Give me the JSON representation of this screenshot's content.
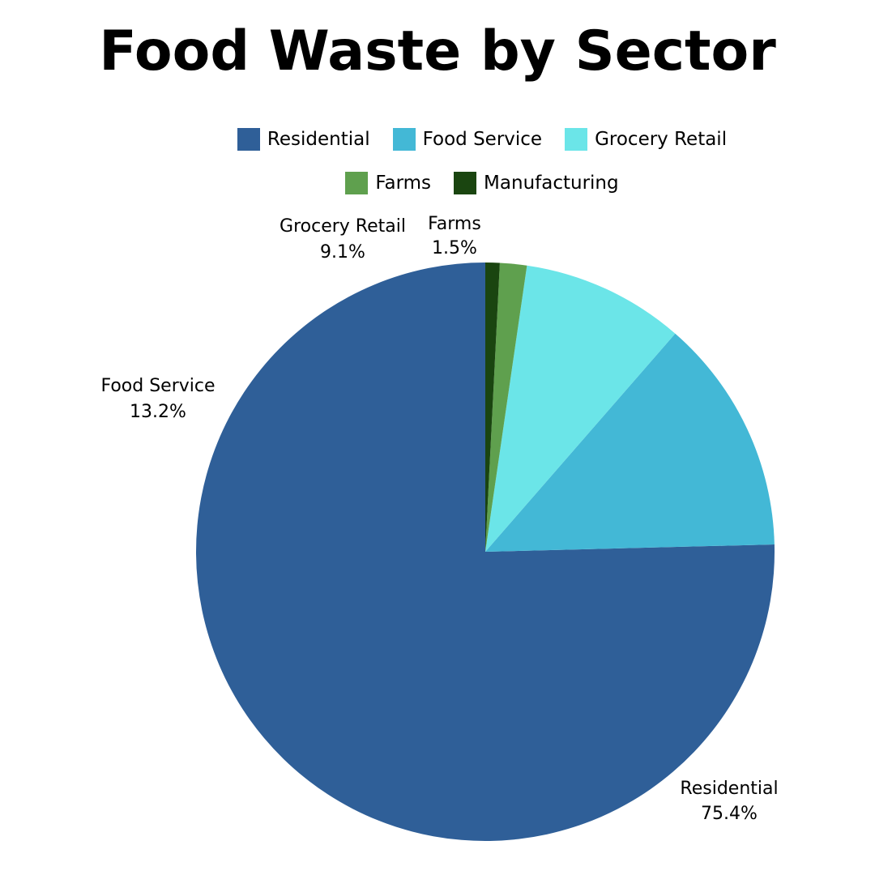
{
  "chart_data": {
    "type": "pie",
    "title": "Food Waste by Sector",
    "legend_position": "top",
    "slices": [
      {
        "label": "Residential",
        "value": 75.4,
        "value_label": "75.4%",
        "color": "#2f5f98"
      },
      {
        "label": "Food Service",
        "value": 13.2,
        "value_label": "13.2%",
        "color": "#43b8d6"
      },
      {
        "label": "Grocery Retail",
        "value": 9.1,
        "value_label": "9.1%",
        "color": "#6be5e8"
      },
      {
        "label": "Farms",
        "value": 1.5,
        "value_label": "1.5%",
        "color": "#5fa04e"
      },
      {
        "label": "Manufacturing",
        "value": 0.8,
        "color": "#1a4510"
      }
    ]
  }
}
